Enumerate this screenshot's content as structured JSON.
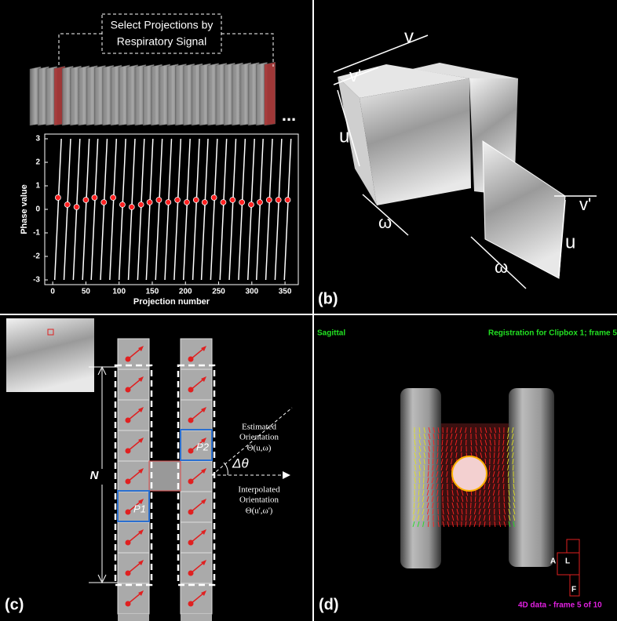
{
  "chart_data": {
    "type": "line",
    "xlabel": "Projection number",
    "ylabel": "Phase value",
    "xlim": [
      -12,
      370
    ],
    "ylim": [
      -3.2,
      3.2
    ],
    "xticks": [
      0,
      50,
      100,
      150,
      200,
      250,
      300,
      350
    ],
    "yticks": [
      -3,
      -2,
      -1,
      0,
      1,
      2,
      3
    ],
    "series": [
      {
        "color": "#ffffff",
        "x": [
          3,
          13,
          null,
          17,
          27,
          null,
          31,
          41,
          null,
          45,
          55,
          null,
          58,
          68,
          null,
          72,
          82,
          null,
          86,
          96,
          null,
          100,
          110,
          null,
          114,
          124,
          null,
          128,
          138,
          null,
          141,
          151,
          null,
          155,
          165,
          null,
          169,
          179,
          null,
          183,
          193,
          null,
          197,
          207,
          null,
          211,
          221,
          null,
          224,
          234,
          null,
          238,
          248,
          null,
          252,
          262,
          null,
          266,
          276,
          null,
          280,
          290,
          null,
          294,
          304,
          null,
          307,
          317,
          null,
          321,
          331,
          null,
          335,
          345,
          null,
          349,
          359
        ],
        "values": [
          -3,
          3,
          null,
          -3,
          3,
          null,
          -3,
          3,
          null,
          -3,
          3,
          null,
          -3,
          3,
          null,
          -3,
          3,
          null,
          -3,
          3,
          null,
          -3,
          3,
          null,
          -3,
          3,
          null,
          -3,
          3,
          null,
          -3,
          3,
          null,
          -3,
          3,
          null,
          -3,
          3,
          null,
          -3,
          3,
          null,
          -3,
          3,
          null,
          -3,
          3,
          null,
          -3,
          3,
          null,
          -3,
          3,
          null,
          -3,
          3,
          null,
          -3,
          3,
          null,
          -3,
          3,
          null,
          -3,
          3,
          null,
          -3,
          3,
          null,
          -3,
          3,
          null,
          -3,
          3,
          null,
          -3,
          3
        ]
      },
      {
        "color": "#ff2020",
        "x": [
          8,
          22,
          36,
          50,
          63,
          77,
          91,
          105,
          119,
          133,
          146,
          160,
          174,
          188,
          202,
          216,
          229,
          243,
          257,
          271,
          285,
          299,
          312,
          326,
          340,
          354
        ],
        "values": [
          0.5,
          0.2,
          0.1,
          0.4,
          0.5,
          0.3,
          0.5,
          0.2,
          0.1,
          0.2,
          0.3,
          0.4,
          0.3,
          0.4,
          0.3,
          0.4,
          0.3,
          0.5,
          0.3,
          0.4,
          0.3,
          0.2,
          0.3,
          0.4,
          0.4,
          0.4
        ]
      }
    ]
  },
  "panels": {
    "a": {
      "callout_line1": "Select Projections by",
      "callout_line2": "Respiratory Signal",
      "more": "..."
    },
    "b": {
      "label": "(b)",
      "v": "v",
      "v_prime_top": "v'",
      "u_left": "u",
      "omega_left": "ω",
      "v_prime_right": "v'",
      "u_right": "u",
      "omega_right": "ω"
    },
    "c": {
      "label": "(c)",
      "n": "N",
      "p1": "P1",
      "p2": "P2",
      "est_1": "Estimated",
      "est_2": "Orientation",
      "est_3": "Θ(u,ω)",
      "delta": "Δθ",
      "interp_1": "Interpolated",
      "interp_2": "Orientation",
      "interp_3": "Θ(u',ω')"
    },
    "d": {
      "label": "(d)",
      "view": "Sagittal",
      "registration": "Registration for Clipbox 1; frame 5",
      "a": "A",
      "l": "L",
      "f": "F",
      "frame": "4D data - frame 5 of 10"
    }
  }
}
